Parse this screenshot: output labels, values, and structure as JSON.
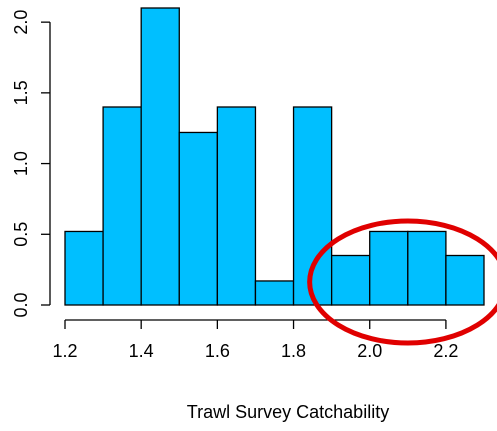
{
  "chart_data": {
    "type": "bar",
    "subtype": "histogram",
    "title": "",
    "xlabel": "Trawl Survey Catchability",
    "ylabel": "",
    "bins": [
      {
        "x0": 1.2,
        "x1": 1.3,
        "value": 0.52
      },
      {
        "x0": 1.3,
        "x1": 1.4,
        "value": 1.4
      },
      {
        "x0": 1.4,
        "x1": 1.5,
        "value": 2.1
      },
      {
        "x0": 1.5,
        "x1": 1.6,
        "value": 1.22
      },
      {
        "x0": 1.6,
        "x1": 1.7,
        "value": 1.4
      },
      {
        "x0": 1.7,
        "x1": 1.8,
        "value": 0.17
      },
      {
        "x0": 1.8,
        "x1": 1.9,
        "value": 1.4
      },
      {
        "x0": 1.9,
        "x1": 2.0,
        "value": 0.35
      },
      {
        "x0": 2.0,
        "x1": 2.1,
        "value": 0.52
      },
      {
        "x0": 2.1,
        "x1": 2.2,
        "value": 0.52
      },
      {
        "x0": 2.2,
        "x1": 2.3,
        "value": 0.35
      }
    ],
    "xlim": [
      1.2,
      2.3
    ],
    "ylim": [
      0,
      2.1
    ],
    "xticks": [
      1.2,
      1.4,
      1.6,
      1.8,
      2.0,
      2.2
    ],
    "xtick_labels": [
      "1.2",
      "1.4",
      "1.6",
      "1.8",
      "2.0",
      "2.2"
    ],
    "yticks": [
      0.0,
      0.5,
      1.0,
      1.5,
      2.0
    ],
    "ytick_labels": [
      "0.0",
      "0.5",
      "1.0",
      "1.5",
      "2.0"
    ],
    "grid": false,
    "bar_color": "#00BFFF",
    "annotation": {
      "shape": "ellipse",
      "color": "#E00000",
      "range_x": [
        1.9,
        2.3
      ]
    }
  }
}
